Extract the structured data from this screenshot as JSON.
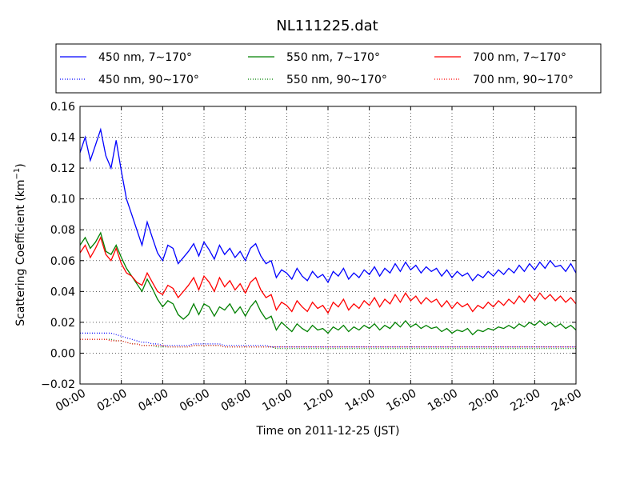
{
  "chart_data": {
    "type": "line",
    "title": "NL111225.dat",
    "xlabel": "Time on 2011-12-25 (JST)",
    "ylabel_main": "Scattering Coefficient (km",
    "ylabel_sup": "−1",
    "ylabel_end": ")",
    "xlim": [
      0,
      24
    ],
    "ylim": [
      -0.02,
      0.16
    ],
    "x_unit": "hours",
    "grid": true,
    "legend_position": "top",
    "legend_columns": 3,
    "x_tick_labels": [
      "00:00",
      "02:00",
      "04:00",
      "06:00",
      "08:00",
      "10:00",
      "12:00",
      "14:00",
      "16:00",
      "18:00",
      "20:00",
      "22:00",
      "24:00"
    ],
    "y_tick_labels": [
      "−0.02",
      "0.00",
      "0.02",
      "0.04",
      "0.06",
      "0.08",
      "0.10",
      "0.12",
      "0.14",
      "0.16"
    ],
    "y_ticks": [
      -0.02,
      0.0,
      0.02,
      0.04,
      0.06,
      0.08,
      0.1,
      0.12,
      0.14,
      0.16
    ],
    "sample_interval_hours": 0.25,
    "series": [
      {
        "name": "450 nm, 7∼170°",
        "color": "#0000ff",
        "style": "solid",
        "values": [
          0.13,
          0.14,
          0.125,
          0.135,
          0.145,
          0.128,
          0.12,
          0.138,
          0.118,
          0.1,
          0.09,
          0.08,
          0.07,
          0.085,
          0.075,
          0.065,
          0.06,
          0.07,
          0.068,
          0.058,
          0.062,
          0.066,
          0.071,
          0.063,
          0.072,
          0.067,
          0.061,
          0.07,
          0.064,
          0.068,
          0.062,
          0.066,
          0.06,
          0.068,
          0.071,
          0.063,
          0.058,
          0.06,
          0.049,
          0.054,
          0.052,
          0.048,
          0.055,
          0.05,
          0.047,
          0.053,
          0.049,
          0.051,
          0.046,
          0.053,
          0.05,
          0.055,
          0.048,
          0.052,
          0.049,
          0.054,
          0.051,
          0.056,
          0.05,
          0.055,
          0.052,
          0.058,
          0.053,
          0.059,
          0.054,
          0.057,
          0.052,
          0.056,
          0.053,
          0.055,
          0.05,
          0.054,
          0.049,
          0.053,
          0.05,
          0.052,
          0.047,
          0.051,
          0.049,
          0.053,
          0.05,
          0.054,
          0.051,
          0.055,
          0.052,
          0.057,
          0.053,
          0.058,
          0.054,
          0.059,
          0.055,
          0.06,
          0.056,
          0.057,
          0.053,
          0.058,
          0.052
        ]
      },
      {
        "name": "550 nm, 7∼170°",
        "color": "#008000",
        "style": "solid",
        "values": [
          0.07,
          0.075,
          0.068,
          0.072,
          0.078,
          0.066,
          0.064,
          0.07,
          0.062,
          0.055,
          0.05,
          0.045,
          0.04,
          0.048,
          0.042,
          0.035,
          0.03,
          0.034,
          0.032,
          0.025,
          0.022,
          0.025,
          0.032,
          0.025,
          0.032,
          0.03,
          0.024,
          0.03,
          0.028,
          0.032,
          0.026,
          0.03,
          0.024,
          0.03,
          0.034,
          0.027,
          0.022,
          0.024,
          0.015,
          0.02,
          0.017,
          0.014,
          0.019,
          0.016,
          0.014,
          0.018,
          0.015,
          0.016,
          0.013,
          0.017,
          0.015,
          0.018,
          0.014,
          0.017,
          0.015,
          0.018,
          0.016,
          0.019,
          0.015,
          0.018,
          0.016,
          0.02,
          0.017,
          0.021,
          0.017,
          0.019,
          0.016,
          0.018,
          0.016,
          0.017,
          0.014,
          0.016,
          0.013,
          0.015,
          0.014,
          0.016,
          0.012,
          0.015,
          0.014,
          0.016,
          0.015,
          0.017,
          0.016,
          0.018,
          0.016,
          0.019,
          0.017,
          0.02,
          0.018,
          0.021,
          0.018,
          0.02,
          0.017,
          0.019,
          0.016,
          0.018,
          0.015
        ]
      },
      {
        "name": "700 nm, 7∼170°",
        "color": "#ff0000",
        "style": "solid",
        "values": [
          0.065,
          0.07,
          0.062,
          0.068,
          0.075,
          0.064,
          0.06,
          0.068,
          0.058,
          0.052,
          0.05,
          0.046,
          0.044,
          0.052,
          0.046,
          0.04,
          0.038,
          0.044,
          0.042,
          0.036,
          0.04,
          0.044,
          0.049,
          0.041,
          0.05,
          0.046,
          0.04,
          0.049,
          0.043,
          0.047,
          0.041,
          0.045,
          0.039,
          0.046,
          0.049,
          0.041,
          0.036,
          0.038,
          0.028,
          0.033,
          0.031,
          0.027,
          0.034,
          0.03,
          0.027,
          0.033,
          0.029,
          0.031,
          0.026,
          0.033,
          0.03,
          0.035,
          0.028,
          0.032,
          0.029,
          0.034,
          0.031,
          0.036,
          0.03,
          0.035,
          0.032,
          0.038,
          0.033,
          0.039,
          0.034,
          0.037,
          0.032,
          0.036,
          0.033,
          0.035,
          0.03,
          0.034,
          0.029,
          0.033,
          0.03,
          0.032,
          0.027,
          0.031,
          0.029,
          0.033,
          0.03,
          0.034,
          0.031,
          0.035,
          0.032,
          0.037,
          0.033,
          0.038,
          0.034,
          0.039,
          0.035,
          0.038,
          0.034,
          0.037,
          0.033,
          0.036,
          0.032
        ]
      },
      {
        "name": "450 nm, 90∼170°",
        "color": "#0000ff",
        "style": "dotted",
        "values": [
          0.013,
          0.013,
          0.013,
          0.013,
          0.013,
          0.013,
          0.013,
          0.012,
          0.011,
          0.01,
          0.009,
          0.008,
          0.007,
          0.007,
          0.006,
          0.006,
          0.005,
          0.005,
          0.005,
          0.005,
          0.005,
          0.005,
          0.006,
          0.006,
          0.006,
          0.006,
          0.006,
          0.006,
          0.005,
          0.005,
          0.005,
          0.005,
          0.005,
          0.005,
          0.005,
          0.005,
          0.005,
          0.004,
          0.004,
          0.004,
          0.004,
          0.004,
          0.004,
          0.004,
          0.004,
          0.004,
          0.004,
          0.004,
          0.004,
          0.004,
          0.004,
          0.004,
          0.004,
          0.004,
          0.004,
          0.004,
          0.004,
          0.004,
          0.004,
          0.004,
          0.004,
          0.004,
          0.004,
          0.004,
          0.004,
          0.004,
          0.004,
          0.004,
          0.004,
          0.004,
          0.004,
          0.004,
          0.004,
          0.004,
          0.004,
          0.004,
          0.004,
          0.004,
          0.004,
          0.004,
          0.004,
          0.004,
          0.004,
          0.004,
          0.004,
          0.004,
          0.004,
          0.004,
          0.004,
          0.004,
          0.004,
          0.004,
          0.004,
          0.004,
          0.004,
          0.004,
          0.004
        ]
      },
      {
        "name": "550 nm, 90∼170°",
        "color": "#008000",
        "style": "dotted",
        "values": [
          0.009,
          0.009,
          0.009,
          0.009,
          0.009,
          0.009,
          0.009,
          0.008,
          0.008,
          0.007,
          0.006,
          0.006,
          0.005,
          0.005,
          0.005,
          0.004,
          0.004,
          0.004,
          0.004,
          0.004,
          0.004,
          0.004,
          0.005,
          0.005,
          0.005,
          0.005,
          0.005,
          0.005,
          0.004,
          0.004,
          0.004,
          0.004,
          0.004,
          0.004,
          0.004,
          0.004,
          0.004,
          0.004,
          0.003,
          0.003,
          0.003,
          0.003,
          0.003,
          0.003,
          0.003,
          0.003,
          0.003,
          0.003,
          0.003,
          0.003,
          0.003,
          0.003,
          0.003,
          0.003,
          0.003,
          0.003,
          0.003,
          0.003,
          0.003,
          0.003,
          0.003,
          0.003,
          0.003,
          0.003,
          0.003,
          0.003,
          0.003,
          0.003,
          0.003,
          0.003,
          0.003,
          0.003,
          0.003,
          0.003,
          0.003,
          0.003,
          0.003,
          0.003,
          0.003,
          0.003,
          0.003,
          0.003,
          0.003,
          0.003,
          0.003,
          0.003,
          0.003,
          0.003,
          0.003,
          0.003,
          0.003,
          0.003,
          0.003,
          0.003,
          0.003,
          0.003,
          0.003
        ]
      },
      {
        "name": "700 nm, 90∼170°",
        "color": "#ff0000",
        "style": "dotted",
        "values": [
          0.009,
          0.009,
          0.009,
          0.009,
          0.009,
          0.009,
          0.008,
          0.008,
          0.008,
          0.007,
          0.006,
          0.006,
          0.005,
          0.005,
          0.005,
          0.005,
          0.005,
          0.004,
          0.004,
          0.004,
          0.004,
          0.004,
          0.005,
          0.005,
          0.005,
          0.005,
          0.005,
          0.005,
          0.004,
          0.004,
          0.004,
          0.004,
          0.004,
          0.004,
          0.004,
          0.004,
          0.004,
          0.004,
          0.004,
          0.004,
          0.004,
          0.004,
          0.004,
          0.004,
          0.004,
          0.004,
          0.004,
          0.004,
          0.004,
          0.004,
          0.004,
          0.004,
          0.004,
          0.004,
          0.004,
          0.004,
          0.004,
          0.004,
          0.004,
          0.004,
          0.004,
          0.004,
          0.004,
          0.004,
          0.004,
          0.004,
          0.004,
          0.004,
          0.004,
          0.004,
          0.004,
          0.004,
          0.004,
          0.004,
          0.004,
          0.004,
          0.004,
          0.004,
          0.004,
          0.004,
          0.004,
          0.004,
          0.004,
          0.004,
          0.004,
          0.004,
          0.004,
          0.004,
          0.004,
          0.004,
          0.004,
          0.004,
          0.004,
          0.004,
          0.004,
          0.004,
          0.004
        ]
      }
    ]
  }
}
